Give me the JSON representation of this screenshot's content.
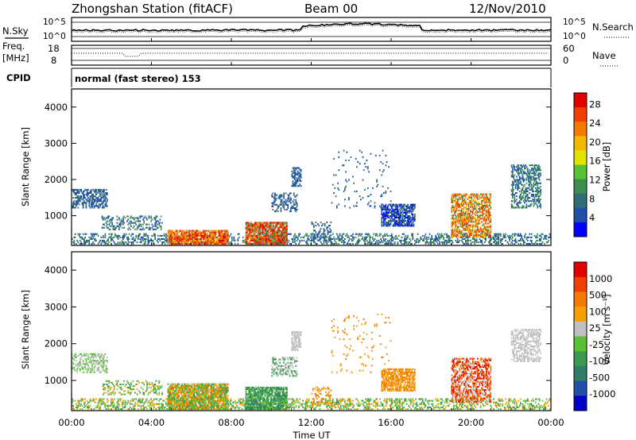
{
  "header": {
    "title": "Zhongshan Station (fitACF)",
    "beam": "Beam 00",
    "date": "12/Nov/2010"
  },
  "noise_panel": {
    "left_label": "N.Sky",
    "right_label": "N.Search",
    "left_ticks": [
      "10^5",
      "10^0"
    ],
    "right_ticks": [
      "10^5",
      "10^0"
    ]
  },
  "freq_panel": {
    "left_label_line1": "Freq.",
    "left_label_line2": "[MHz]",
    "right_label": "Nave",
    "left_ticks": [
      "18",
      "8"
    ],
    "right_ticks": [
      "60",
      "0"
    ]
  },
  "cpid": {
    "label": "CPID",
    "text": "normal (fast stereo) 153"
  },
  "chart_data": [
    {
      "type": "heatmap",
      "quantity": "Power",
      "ylabel": "Slant Range [km]",
      "xlabel": "Time UT",
      "x_ticks": [
        "00:00",
        "04:00",
        "08:00",
        "12:00",
        "16:00",
        "20:00",
        "00:00"
      ],
      "y_ticks": [
        1000,
        2000,
        3000,
        4000
      ],
      "ylim": [
        180,
        4500
      ],
      "colorbar_label": "Power [dB]",
      "colorbar_ticks": [
        "4",
        "8",
        "12",
        "16",
        "20",
        "24",
        "28"
      ],
      "colorbar_colors": [
        "#0000ff",
        "#1f4fa8",
        "#2f6c7a",
        "#3c8f4e",
        "#58c234",
        "#e3e300",
        "#f5b800",
        "#f57a00",
        "#f04000",
        "#e00000"
      ],
      "colorbar_range": [
        0,
        30
      ]
    },
    {
      "type": "heatmap",
      "quantity": "Velocity",
      "ylabel": "Slant Range [km]",
      "xlabel": "Time UT",
      "x_ticks": [
        "00:00",
        "04:00",
        "08:00",
        "12:00",
        "16:00",
        "20:00",
        "00:00"
      ],
      "y_ticks": [
        1000,
        2000,
        3000,
        4000
      ],
      "ylim": [
        180,
        4500
      ],
      "colorbar_label": "Velocity [m s⁻¹]",
      "colorbar_ticks": [
        "1000",
        "500",
        "100",
        "25",
        "-25",
        "-100",
        "-500",
        "-1000"
      ],
      "colorbar_colors": [
        "#0000c8",
        "#1f4fa8",
        "#2f7c6a",
        "#3c9a4e",
        "#58c234",
        "#c0c0c0",
        "#f5a000",
        "#f57a00",
        "#f04000",
        "#e00000"
      ]
    }
  ],
  "xlabel": "Time UT"
}
